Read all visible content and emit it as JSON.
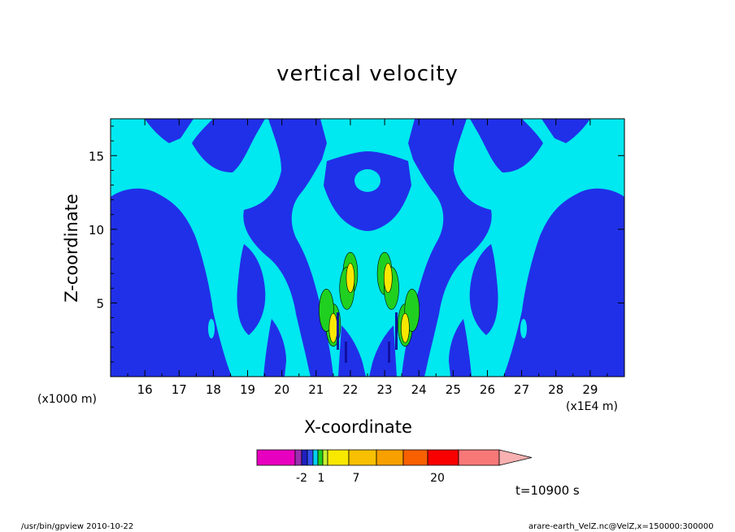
{
  "chart_data": {
    "type": "heatmap",
    "title": "vertical velocity",
    "xlabel": "X-coordinate",
    "ylabel": "Z-coordinate",
    "x_unit_label": "(x1E4 m)",
    "y_unit_label": "(x1000 m)",
    "xlim": [
      15,
      30
    ],
    "ylim": [
      0,
      17.5
    ],
    "x_ticks": [
      16,
      17,
      18,
      19,
      20,
      21,
      22,
      23,
      24,
      25,
      26,
      27,
      28,
      29
    ],
    "y_ticks": [
      5,
      10,
      15
    ],
    "colorbar": {
      "tick_labels": [
        "-2",
        "1",
        "7",
        "20"
      ],
      "colors": [
        "#e800c0",
        "#9a30b0",
        "#2020c0",
        "#3050f0",
        "#00d0f0",
        "#20d020",
        "#c8f030",
        "#f8e800",
        "#f8c000",
        "#f8a000",
        "#f86000",
        "#f80000",
        "#f87878",
        "#f8b0b0"
      ]
    },
    "series": [
      {
        "name": "w > 1",
        "cells": [
          {
            "x": 21.5,
            "z": 3.5
          },
          {
            "x": 21.3,
            "z": 4.5
          },
          {
            "x": 22.0,
            "z": 7.0
          },
          {
            "x": 21.9,
            "z": 6.0
          },
          {
            "x": 23.0,
            "z": 7.0
          },
          {
            "x": 23.2,
            "z": 6.0
          },
          {
            "x": 23.6,
            "z": 3.5
          },
          {
            "x": 23.8,
            "z": 4.5
          }
        ]
      },
      {
        "name": "w > 7",
        "cells": [
          {
            "x": 21.5,
            "z": 3.3
          },
          {
            "x": 22.0,
            "z": 6.7
          },
          {
            "x": 23.1,
            "z": 6.7
          },
          {
            "x": 23.6,
            "z": 3.3
          }
        ]
      }
    ]
  },
  "annotations": {
    "time": "t=10900 s",
    "footer_left": "/usr/bin/gpview   2010-10-22",
    "footer_right": "arare-earth_VelZ.nc@VelZ,x=150000:300000"
  }
}
